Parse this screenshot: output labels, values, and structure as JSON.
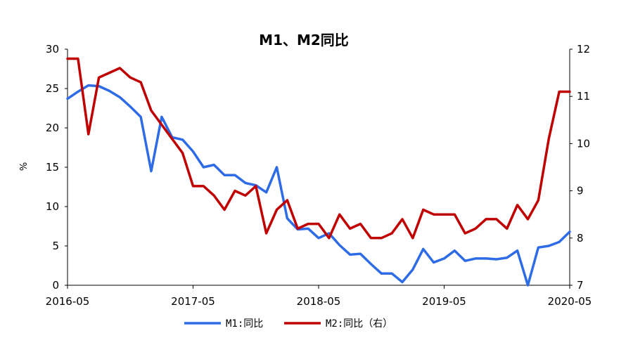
{
  "chart_data": {
    "type": "line",
    "title": "M1、M2同比",
    "ylabel": "%",
    "y2label": "",
    "xlim": [
      "2016-05",
      "2020-05"
    ],
    "ylim": [
      0,
      30
    ],
    "y2lim": [
      7,
      12
    ],
    "x_ticks": [
      "2016-05",
      "2017-05",
      "2018-05",
      "2019-05",
      "2020-05"
    ],
    "y_ticks": [
      "0",
      "5",
      "10",
      "15",
      "20",
      "25",
      "30"
    ],
    "y2_ticks": [
      "7",
      "8",
      "9",
      "10",
      "11",
      "12"
    ],
    "grid": false,
    "legend": "bottom-center",
    "x": [
      "2016-05",
      "2016-06",
      "2016-07",
      "2016-08",
      "2016-09",
      "2016-10",
      "2016-11",
      "2016-12",
      "2017-01",
      "2017-02",
      "2017-03",
      "2017-04",
      "2017-05",
      "2017-06",
      "2017-07",
      "2017-08",
      "2017-09",
      "2017-10",
      "2017-11",
      "2017-12",
      "2018-01",
      "2018-02",
      "2018-03",
      "2018-04",
      "2018-05",
      "2018-06",
      "2018-07",
      "2018-08",
      "2018-09",
      "2018-10",
      "2018-11",
      "2018-12",
      "2019-01",
      "2019-02",
      "2019-03",
      "2019-04",
      "2019-05",
      "2019-06",
      "2019-07",
      "2019-08",
      "2019-09",
      "2019-10",
      "2019-11",
      "2019-12",
      "2020-01",
      "2020-02",
      "2020-03",
      "2020-04",
      "2020-05"
    ],
    "series": [
      {
        "name": "M1:同比",
        "axis": "left",
        "color": "#2E6BE6",
        "values": [
          23.7,
          24.6,
          25.4,
          25.3,
          24.7,
          23.9,
          22.7,
          21.4,
          14.5,
          21.4,
          18.8,
          18.5,
          17.0,
          15.0,
          15.3,
          14.0,
          14.0,
          13.0,
          12.7,
          11.8,
          15.0,
          8.5,
          7.1,
          7.2,
          6.0,
          6.6,
          5.1,
          3.9,
          4.0,
          2.7,
          1.5,
          1.5,
          0.4,
          2.0,
          4.6,
          2.9,
          3.4,
          4.4,
          3.1,
          3.4,
          3.4,
          3.3,
          3.5,
          4.4,
          0.0,
          4.8,
          5.0,
          5.5,
          6.8
        ]
      },
      {
        "name": "M2:同比（右）",
        "axis": "right",
        "color": "#C00000",
        "values": [
          11.8,
          11.8,
          10.2,
          11.4,
          11.5,
          11.6,
          11.4,
          11.3,
          10.7,
          10.4,
          10.1,
          9.8,
          9.1,
          9.1,
          8.9,
          8.6,
          9.0,
          8.9,
          9.1,
          8.1,
          8.6,
          8.8,
          8.2,
          8.3,
          8.3,
          8.0,
          8.5,
          8.2,
          8.3,
          8.0,
          8.0,
          8.1,
          8.4,
          8.0,
          8.6,
          8.5,
          8.5,
          8.5,
          8.1,
          8.2,
          8.4,
          8.4,
          8.2,
          8.7,
          8.4,
          8.8,
          10.1,
          11.1,
          11.1
        ]
      }
    ]
  }
}
